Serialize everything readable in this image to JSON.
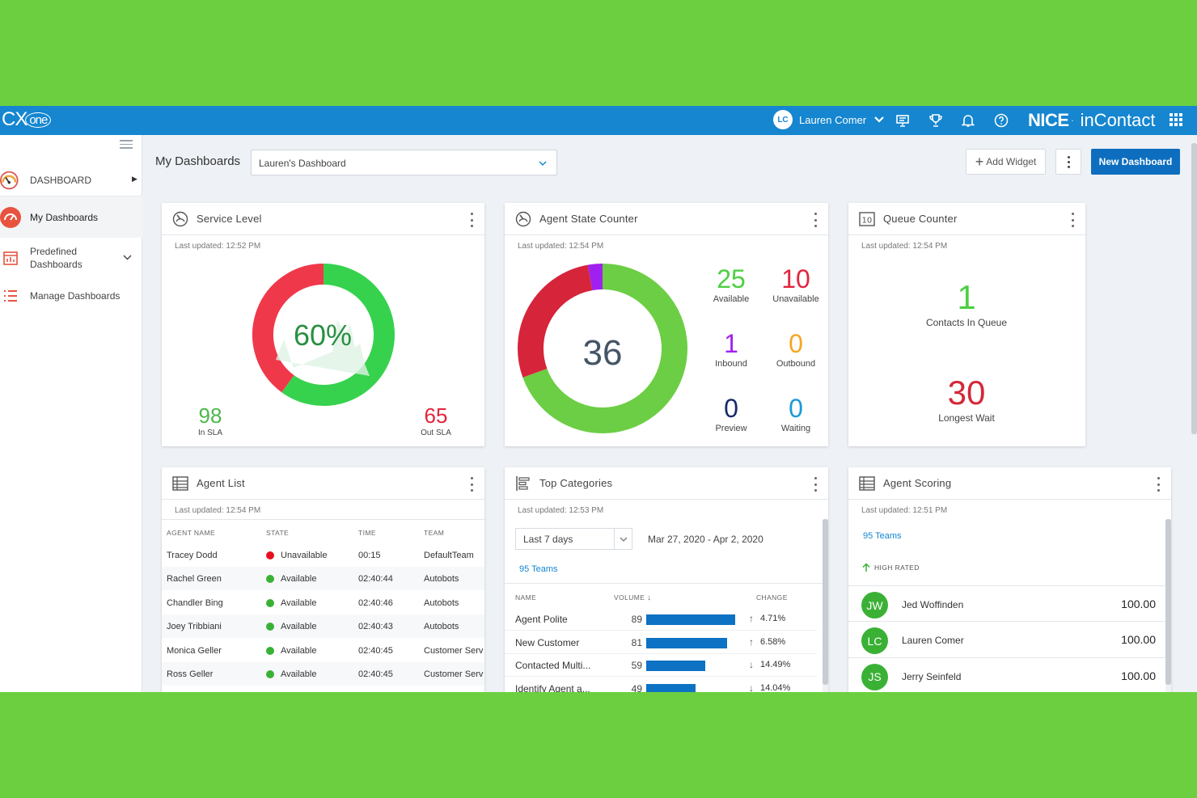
{
  "colors": {
    "bg": "#6ccf3f",
    "topbar": "#1586cf",
    "primary": "#0d6ebf",
    "green": "#4ccf41",
    "red": "#e1253e",
    "purple": "#a020f0",
    "orange": "#f5a623",
    "navy": "#1a2a6c",
    "cyan": "#1b9ad6",
    "bar": "#0d72c4"
  },
  "topbar": {
    "logo_cx": "CX",
    "logo_one": "one",
    "user_initials": "LC",
    "user_name": "Lauren Comer",
    "brand_nice": "NICE",
    "brand_dot": "·",
    "brand_incontact": "inContact",
    "icons": [
      "chevron-down-icon",
      "presentation-icon",
      "trophy-icon",
      "bell-icon",
      "help-icon",
      "apps-grid-icon"
    ]
  },
  "sidebar": {
    "items": [
      {
        "label": "DASHBOARD",
        "icon": "gauge-icon"
      },
      {
        "label": "My Dashboards",
        "icon": "speedometer-icon"
      },
      {
        "label": "Predefined Dashboards",
        "label_line1": "Predefined",
        "label_line2": "Dashboards",
        "icon": "calendar-chart-icon"
      },
      {
        "label": "Manage Dashboards",
        "icon": "list-icon"
      }
    ]
  },
  "header": {
    "title": "My Dashboards",
    "selected_dashboard": "Lauren's Dashboard",
    "add_widget": "Add Widget",
    "new_dashboard": "New Dashboard"
  },
  "service_level": {
    "title": "Service Level",
    "updated": "Last updated: 12:52 PM",
    "percent": "60%",
    "percent_value": 60,
    "in_sla": "98",
    "in_sla_label": "In SLA",
    "out_sla": "65",
    "out_sla_label": "Out SLA"
  },
  "agent_state": {
    "title": "Agent State Counter",
    "updated": "Last updated: 12:54 PM",
    "total": "36",
    "segments": [
      {
        "state": "Available",
        "value": 25
      },
      {
        "state": "Unavailable",
        "value": 10
      },
      {
        "state": "Inbound",
        "value": 1
      }
    ],
    "stats": [
      {
        "value": "25",
        "label": "Available",
        "color": "#4ccf41"
      },
      {
        "value": "10",
        "label": "Unavailable",
        "color": "#e1253e"
      },
      {
        "value": "1",
        "label": "Inbound",
        "color": "#a020f0"
      },
      {
        "value": "0",
        "label": "Outbound",
        "color": "#f5a623"
      },
      {
        "value": "0",
        "label": "Preview",
        "color": "#1a2a6c"
      },
      {
        "value": "0",
        "label": "Waiting",
        "color": "#1b9ad6"
      }
    ]
  },
  "queue_counter": {
    "title": "Queue Counter",
    "updated": "Last updated: 12:54 PM",
    "contacts_value": "1",
    "contacts_label": "Contacts In Queue",
    "wait_value": "30",
    "wait_label": "Longest Wait"
  },
  "agent_list": {
    "title": "Agent List",
    "updated": "Last updated: 12:54 PM",
    "columns": [
      "AGENT NAME",
      "STATE",
      "TIME",
      "TEAM"
    ],
    "rows": [
      {
        "name": "Tracey Dodd",
        "state": "Unavailable",
        "time": "00:15",
        "team": "DefaultTeam",
        "color": "#e8101e"
      },
      {
        "name": "Rachel Green",
        "state": "Available",
        "time": "02:40:44",
        "team": "Autobots",
        "color": "#3ab135"
      },
      {
        "name": "Chandler Bing",
        "state": "Available",
        "time": "02:40:46",
        "team": "Autobots",
        "color": "#3ab135"
      },
      {
        "name": "Joey Tribbiani",
        "state": "Available",
        "time": "02:40:43",
        "team": "Autobots",
        "color": "#3ab135"
      },
      {
        "name": "Monica Geller",
        "state": "Available",
        "time": "02:40:45",
        "team": "Customer Serv",
        "color": "#3ab135"
      },
      {
        "name": "Ross Geller",
        "state": "Available",
        "time": "02:40:45",
        "team": "Customer Serv",
        "color": "#3ab135"
      }
    ]
  },
  "top_categories": {
    "title": "Top Categories",
    "updated": "Last updated: 12:53 PM",
    "range": "Last 7 days",
    "dates": "Mar 27, 2020 - Apr 2, 2020",
    "teams": "95 Teams",
    "columns": [
      "NAME",
      "VOLUME",
      "CHANGE"
    ],
    "rows": [
      {
        "name": "Agent Polite",
        "volume": 89,
        "change": "4.71%",
        "dir": "↑"
      },
      {
        "name": "New Customer",
        "volume": 81,
        "change": "6.58%",
        "dir": "↑"
      },
      {
        "name": "Contacted Multi...",
        "volume": 59,
        "change": "14.49%",
        "dir": "↓"
      },
      {
        "name": "Identify Agent a...",
        "volume": 49,
        "change": "14.04%",
        "dir": "↓"
      }
    ]
  },
  "agent_scoring": {
    "title": "Agent Scoring",
    "updated": "Last updated: 12:51 PM",
    "teams": "95 Teams",
    "section": "HIGH RATED",
    "rows": [
      {
        "initials": "JW",
        "name": "Jed Woffinden",
        "score": "100.00"
      },
      {
        "initials": "LC",
        "name": "Lauren Comer",
        "score": "100.00"
      },
      {
        "initials": "JS",
        "name": "Jerry Seinfeld",
        "score": "100.00"
      }
    ]
  }
}
